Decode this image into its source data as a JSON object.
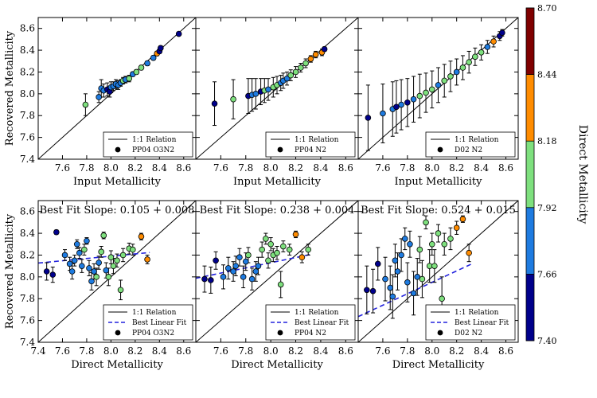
{
  "colorbar": {
    "label": "Direct Metallicity",
    "ticks": [
      "8.70",
      "8.44",
      "8.18",
      "7.92",
      "7.66",
      "7.40"
    ],
    "colors": [
      "#7f0000",
      "#ff8c00",
      "#7ee07e",
      "#1e7be0",
      "#00008b"
    ]
  },
  "chart_data": [
    {
      "type": "scatter",
      "panel": "top-left",
      "xlabel": "Input Metallicity",
      "ylabel": "Recovered Metallicity",
      "xlim": [
        7.4,
        8.7
      ],
      "ylim": [
        7.4,
        8.7
      ],
      "xticks": [
        "7.6",
        "7.8",
        "8.0",
        "8.2",
        "8.4",
        "8.6"
      ],
      "yticks": [
        "7.4",
        "7.6",
        "7.8",
        "8.0",
        "8.2",
        "8.4",
        "8.6"
      ],
      "legend": [
        "1:1 Relation",
        "PP04 O3N2"
      ],
      "x": [
        7.79,
        7.9,
        7.92,
        7.94,
        7.97,
        7.99,
        8.0,
        8.02,
        8.04,
        8.06,
        8.08,
        8.1,
        8.12,
        8.15,
        8.18,
        8.21,
        8.25,
        8.3,
        8.35,
        8.38,
        8.4,
        8.41,
        8.56
      ],
      "y": [
        7.9,
        7.97,
        8.05,
        8.03,
        8.04,
        8.02,
        8.06,
        8.07,
        8.09,
        8.08,
        8.1,
        8.12,
        8.13,
        8.14,
        8.18,
        8.2,
        8.24,
        8.28,
        8.33,
        8.37,
        8.39,
        8.42,
        8.55
      ],
      "err": [
        0.1,
        0.05,
        0.08,
        0.06,
        0.06,
        0.05,
        0.05,
        0.04,
        0.04,
        0.04,
        0.03,
        0.03,
        0.03,
        0.03,
        0.02,
        0.02,
        0.02,
        0.02,
        0.02,
        0.02,
        0.02,
        0.02,
        0.01
      ],
      "c": [
        7.95,
        7.75,
        7.7,
        7.72,
        7.5,
        7.6,
        7.7,
        7.8,
        7.9,
        7.68,
        7.85,
        7.95,
        7.72,
        8.0,
        7.9,
        8.05,
        8.1,
        7.75,
        7.8,
        8.25,
        7.5,
        7.6,
        7.55
      ]
    },
    {
      "type": "scatter",
      "panel": "top-middle",
      "xlabel": "Input Metallicity",
      "ylabel": "",
      "xlim": [
        7.4,
        8.7
      ],
      "ylim": [
        7.4,
        8.7
      ],
      "xticks": [
        "7.6",
        "7.8",
        "8.0",
        "8.2",
        "8.4",
        "8.6"
      ],
      "yticks": [],
      "legend": [
        "1:1 Relation",
        "PP04 N2"
      ],
      "x": [
        7.55,
        7.7,
        7.82,
        7.85,
        7.88,
        7.92,
        7.95,
        7.98,
        8.02,
        8.05,
        8.08,
        8.1,
        8.13,
        8.16,
        8.2,
        8.24,
        8.28,
        8.32,
        8.36,
        8.41,
        8.43
      ],
      "y": [
        7.91,
        7.95,
        7.98,
        7.99,
        8.0,
        8.02,
        8.03,
        8.04,
        8.06,
        8.08,
        8.1,
        8.12,
        8.14,
        8.17,
        8.2,
        8.24,
        8.28,
        8.32,
        8.36,
        8.38,
        8.41
      ],
      "err": [
        0.2,
        0.18,
        0.16,
        0.15,
        0.14,
        0.12,
        0.11,
        0.1,
        0.09,
        0.08,
        0.07,
        0.07,
        0.06,
        0.05,
        0.05,
        0.04,
        0.04,
        0.03,
        0.03,
        0.03,
        0.02
      ],
      "c": [
        7.5,
        7.95,
        7.6,
        7.7,
        7.75,
        7.65,
        8.0,
        7.9,
        8.0,
        7.95,
        7.9,
        7.85,
        7.9,
        8.0,
        7.95,
        8.05,
        8.1,
        8.2,
        8.3,
        8.25,
        7.6
      ]
    },
    {
      "type": "scatter",
      "panel": "top-right",
      "xlabel": "Input Metallicity",
      "ylabel": "",
      "xlim": [
        7.4,
        8.7
      ],
      "ylim": [
        7.4,
        8.7
      ],
      "xticks": [
        "7.6",
        "7.8",
        "8.0",
        "8.2",
        "8.4",
        "8.6"
      ],
      "yticks": [],
      "legend": [
        "1:1 Relation",
        "D02 N2"
      ],
      "x": [
        7.48,
        7.6,
        7.68,
        7.71,
        7.75,
        7.8,
        7.85,
        7.9,
        7.95,
        8.0,
        8.05,
        8.1,
        8.15,
        8.2,
        8.25,
        8.3,
        8.35,
        8.4,
        8.45,
        8.5,
        8.55,
        8.57
      ],
      "y": [
        7.78,
        7.82,
        7.86,
        7.88,
        7.9,
        7.92,
        7.95,
        7.98,
        8.01,
        8.04,
        8.08,
        8.12,
        8.16,
        8.2,
        8.24,
        8.29,
        8.34,
        8.38,
        8.43,
        8.48,
        8.53,
        8.56
      ],
      "err": [
        0.3,
        0.27,
        0.25,
        0.24,
        0.23,
        0.22,
        0.21,
        0.2,
        0.18,
        0.17,
        0.16,
        0.15,
        0.14,
        0.12,
        0.11,
        0.1,
        0.08,
        0.07,
        0.06,
        0.05,
        0.04,
        0.03
      ],
      "c": [
        7.5,
        7.9,
        7.7,
        7.65,
        7.8,
        7.6,
        7.85,
        7.95,
        8.0,
        7.95,
        7.9,
        8.05,
        8.0,
        7.75,
        8.1,
        8.0,
        8.15,
        7.95,
        7.7,
        8.25,
        7.6,
        7.55
      ]
    },
    {
      "type": "scatter",
      "panel": "bottom-left",
      "xlabel": "Direct Metallicity",
      "ylabel": "Recovered Metallicity",
      "xlim": [
        7.4,
        8.7
      ],
      "ylim": [
        7.4,
        8.7
      ],
      "xticks": [
        "7.4",
        "7.6",
        "7.8",
        "8.0",
        "8.2",
        "8.4",
        "8.6"
      ],
      "yticks": [
        "7.4",
        "7.6",
        "7.8",
        "8.0",
        "8.2",
        "8.4",
        "8.6"
      ],
      "title": "Best Fit Slope: 0.105 + 0.008",
      "legend": [
        "1:1 Relation",
        "Best Linear Fit",
        "PP04 O3N2"
      ],
      "fit": [
        0.105,
        8.19
      ],
      "x": [
        7.47,
        7.52,
        7.55,
        7.62,
        7.66,
        7.68,
        7.7,
        7.72,
        7.74,
        7.76,
        7.78,
        7.8,
        7.82,
        7.84,
        7.86,
        7.88,
        7.9,
        7.92,
        7.94,
        7.96,
        7.98,
        8.0,
        8.02,
        8.05,
        8.08,
        8.1,
        8.15,
        8.18,
        8.25,
        8.3
      ],
      "y": [
        8.05,
        8.02,
        8.41,
        8.2,
        8.12,
        8.05,
        8.15,
        8.3,
        8.22,
        8.1,
        8.25,
        8.33,
        8.08,
        7.96,
        8.05,
        8.0,
        8.13,
        8.23,
        8.38,
        8.06,
        8.0,
        8.18,
        8.1,
        8.15,
        7.88,
        8.2,
        8.26,
        8.25,
        8.37,
        8.16
      ],
      "err": [
        0.08,
        0.07,
        0.02,
        0.05,
        0.06,
        0.07,
        0.05,
        0.04,
        0.05,
        0.06,
        0.05,
        0.03,
        0.07,
        0.08,
        0.07,
        0.08,
        0.06,
        0.05,
        0.03,
        0.07,
        0.08,
        0.06,
        0.07,
        0.06,
        0.09,
        0.06,
        0.05,
        0.05,
        0.03,
        0.04
      ],
      "c": [
        7.5,
        7.55,
        7.5,
        7.7,
        7.8,
        7.75,
        7.7,
        7.9,
        7.85,
        7.8,
        7.95,
        7.75,
        7.85,
        7.8,
        7.9,
        7.95,
        7.85,
        8.0,
        8.0,
        7.9,
        8.05,
        7.95,
        8.0,
        8.05,
        8.1,
        8.0,
        8.05,
        8.1,
        8.3,
        8.35
      ]
    },
    {
      "type": "scatter",
      "panel": "bottom-middle",
      "xlabel": "Direct Metallicity",
      "ylabel": "",
      "xlim": [
        7.4,
        8.7
      ],
      "ylim": [
        7.4,
        8.7
      ],
      "xticks": [
        "7.6",
        "7.8",
        "8.0",
        "8.2",
        "8.4",
        "8.6"
      ],
      "yticks": [],
      "title": "Best Fit Slope: 0.238 + 0.004",
      "legend": [
        "1:1 Relation",
        "Best Linear Fit",
        "PP04 N2"
      ],
      "fit": [
        0.238,
        8.13
      ],
      "x": [
        7.47,
        7.52,
        7.56,
        7.62,
        7.66,
        7.7,
        7.72,
        7.75,
        7.78,
        7.8,
        7.82,
        7.85,
        7.88,
        7.9,
        7.93,
        7.96,
        7.98,
        8.0,
        8.02,
        8.05,
        8.08,
        8.1,
        8.15,
        8.2,
        8.25,
        8.3
      ],
      "y": [
        7.98,
        7.97,
        8.15,
        8.0,
        8.08,
        8.05,
        8.1,
        8.18,
        8.0,
        8.14,
        8.2,
        7.98,
        8.05,
        8.1,
        8.25,
        8.35,
        8.15,
        8.3,
        8.2,
        8.22,
        7.93,
        8.28,
        8.25,
        8.39,
        8.18,
        8.25
      ],
      "err": [
        0.12,
        0.12,
        0.08,
        0.11,
        0.1,
        0.09,
        0.09,
        0.08,
        0.1,
        0.08,
        0.07,
        0.1,
        0.09,
        0.08,
        0.07,
        0.05,
        0.07,
        0.06,
        0.06,
        0.06,
        0.12,
        0.05,
        0.05,
        0.03,
        0.05,
        0.05
      ],
      "c": [
        7.5,
        7.55,
        7.5,
        7.7,
        7.75,
        7.7,
        7.8,
        7.9,
        7.8,
        7.85,
        7.95,
        7.75,
        7.9,
        7.85,
        8.0,
        8.05,
        7.95,
        8.1,
        8.0,
        8.05,
        8.1,
        8.0,
        8.05,
        8.3,
        8.35,
        8.1
      ]
    },
    {
      "type": "scatter",
      "panel": "bottom-right",
      "xlabel": "Direct Metallicity",
      "ylabel": "",
      "xlim": [
        7.4,
        8.7
      ],
      "ylim": [
        7.4,
        8.7
      ],
      "xticks": [
        "7.6",
        "7.8",
        "8.0",
        "8.2",
        "8.4",
        "8.6"
      ],
      "yticks": [],
      "title": "Best Fit Slope: 0.524 + 0.015",
      "legend": [
        "1:1 Relation",
        "Best Linear Fit",
        "D02 N2"
      ],
      "fit": [
        0.524,
        7.95
      ],
      "x": [
        7.47,
        7.52,
        7.56,
        7.62,
        7.66,
        7.68,
        7.7,
        7.72,
        7.75,
        7.78,
        7.8,
        7.82,
        7.85,
        7.88,
        7.9,
        7.92,
        7.95,
        7.98,
        8.0,
        8.02,
        8.05,
        8.08,
        8.1,
        8.15,
        8.2,
        8.25,
        8.3
      ],
      "y": [
        7.88,
        7.87,
        8.12,
        7.98,
        7.9,
        7.82,
        8.15,
        8.05,
        8.2,
        8.35,
        7.95,
        8.3,
        7.85,
        8.0,
        8.25,
        7.98,
        8.5,
        8.1,
        8.3,
        8.1,
        8.4,
        7.8,
        8.3,
        8.35,
        8.45,
        8.53,
        8.22
      ],
      "err": [
        0.22,
        0.2,
        0.15,
        0.2,
        0.2,
        0.2,
        0.15,
        0.17,
        0.15,
        0.1,
        0.18,
        0.12,
        0.2,
        0.17,
        0.12,
        0.17,
        0.06,
        0.15,
        0.1,
        0.15,
        0.08,
        0.2,
        0.1,
        0.1,
        0.06,
        0.03,
        0.08
      ],
      "c": [
        7.5,
        7.55,
        7.5,
        7.7,
        7.75,
        7.7,
        7.8,
        7.9,
        7.8,
        7.85,
        7.75,
        7.8,
        7.9,
        7.85,
        8.0,
        7.95,
        8.05,
        7.95,
        8.0,
        8.05,
        8.1,
        8.0,
        8.05,
        8.1,
        8.3,
        8.35,
        8.3
      ]
    }
  ]
}
